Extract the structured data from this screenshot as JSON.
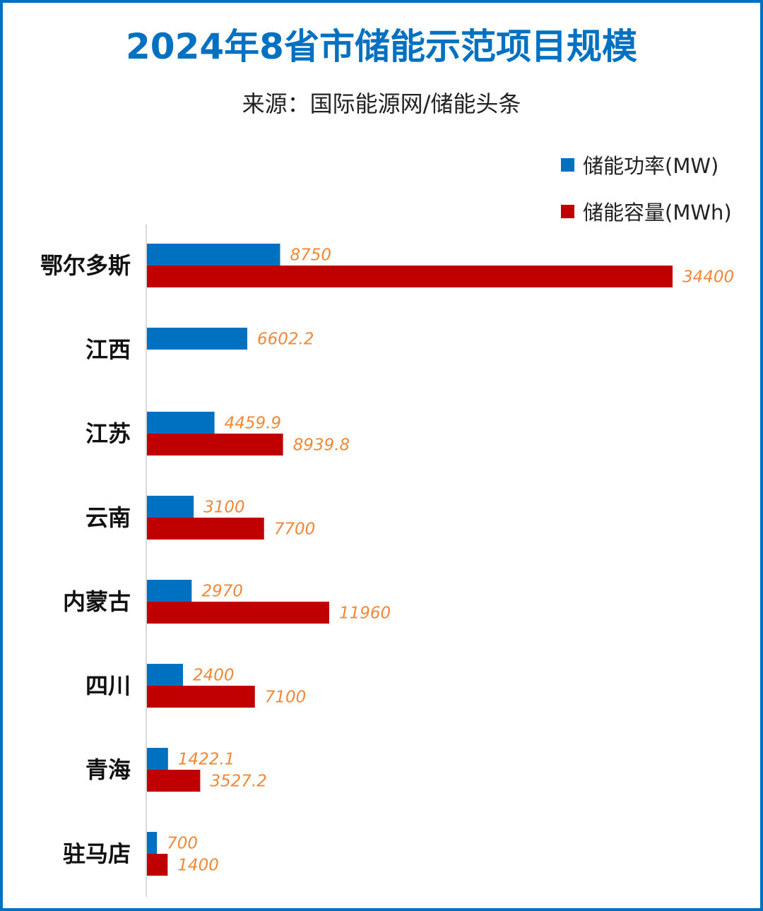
{
  "chart_data": {
    "type": "bar",
    "orientation": "horizontal",
    "title": "2024年8省市储能示范项目规模",
    "subtitle": "来源：国际能源网/储能头条",
    "categories": [
      "鄂尔多斯",
      "江西",
      "江苏",
      "云南",
      "内蒙古",
      "四川",
      "青海",
      "驻马店"
    ],
    "series": [
      {
        "name": "储能功率(MW)",
        "color": "#0070C0",
        "values": [
          8750,
          6602.2,
          4459.9,
          3100,
          2970,
          2400,
          1422.1,
          700
        ]
      },
      {
        "name": "储能容量(MWh)",
        "color": "#C00000",
        "values": [
          34400,
          null,
          8939.8,
          7700,
          11960,
          7100,
          3527.2,
          1400
        ]
      }
    ],
    "data_label_color": "#F0883A",
    "xlim": [
      0,
      34400
    ],
    "grid": false,
    "legend_position": "top-right"
  }
}
